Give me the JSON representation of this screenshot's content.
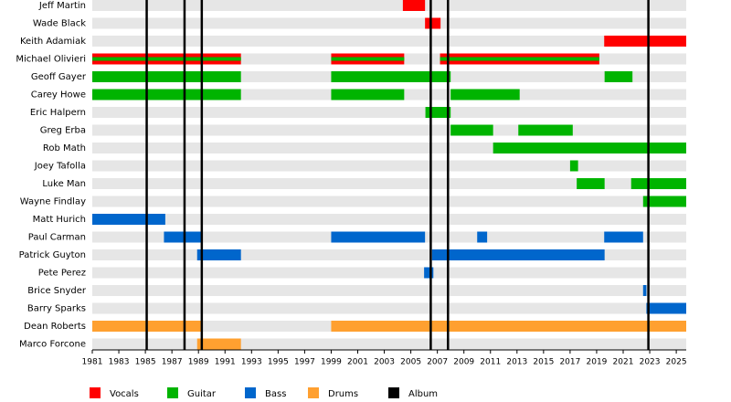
{
  "chart_data": {
    "type": "timeline",
    "rows": [
      {
        "name": "Jeff Martin",
        "periods": [
          [
            [
              2004.4,
              2006.07
            ]
          ],
          [],
          [],
          []
        ]
      },
      {
        "name": "Wade Black",
        "periods": [
          [
            [
              2006.07,
              2007.24
            ]
          ],
          [],
          [],
          []
        ]
      },
      {
        "name": "Keith Adamiak",
        "periods": [
          [
            [
              2019.57,
              2025.75
            ]
          ],
          [],
          [],
          []
        ]
      },
      {
        "name": "Michael Olivieri",
        "periods": [
          [
            [
              1981,
              1992.2
            ],
            [
              1999,
              2004.5
            ],
            [
              2007.2,
              2019.2
            ]
          ],
          [
            [
              1981,
              1992.2
            ],
            [
              1999,
              2004.5
            ],
            [
              2007.2,
              2019.2
            ]
          ],
          [],
          []
        ]
      },
      {
        "name": "Geoff Gayer",
        "periods": [
          [],
          [
            [
              1981,
              1992.2
            ],
            [
              1999,
              2008
            ],
            [
              2019.6,
              2021.7
            ]
          ],
          [],
          []
        ]
      },
      {
        "name": "Carey Howe",
        "periods": [
          [],
          [
            [
              1981,
              1992.2
            ],
            [
              1999,
              2004.5
            ],
            [
              2008,
              2013.2
            ]
          ],
          [],
          []
        ]
      },
      {
        "name": "Eric Halpern",
        "periods": [
          [],
          [
            [
              2006.1,
              2008
            ]
          ],
          [],
          []
        ]
      },
      {
        "name": "Greg Erba",
        "periods": [
          [],
          [
            [
              2008,
              2011.2
            ],
            [
              2013.1,
              2017.2
            ]
          ],
          [],
          []
        ]
      },
      {
        "name": "Rob Math",
        "periods": [
          [],
          [
            [
              2011.2,
              2025.75
            ]
          ],
          [],
          []
        ]
      },
      {
        "name": "Joey Tafolla",
        "periods": [
          [],
          [
            [
              2017,
              2017.6
            ]
          ],
          [],
          []
        ]
      },
      {
        "name": "Luke Man",
        "periods": [
          [],
          [
            [
              2017.5,
              2019.6
            ],
            [
              2021.6,
              2025.75
            ]
          ],
          [],
          []
        ]
      },
      {
        "name": "Wayne Findlay",
        "periods": [
          [],
          [
            [
              2022.5,
              2025.75
            ]
          ],
          [],
          []
        ]
      },
      {
        "name": "Matt Hurich",
        "periods": [
          [],
          [],
          [
            [
              1981,
              1986.5
            ]
          ],
          []
        ]
      },
      {
        "name": "Paul Carman",
        "periods": [
          [],
          [],
          [
            [
              1986.4,
              1989.2
            ],
            [
              1999,
              2006.07
            ],
            [
              2010,
              2010.75
            ],
            [
              2019.57,
              2022.5
            ]
          ],
          []
        ]
      },
      {
        "name": "Patrick Guyton",
        "periods": [
          [],
          [],
          [
            [
              1988.9,
              1992.2
            ],
            [
              2006.6,
              2019.6
            ]
          ],
          []
        ]
      },
      {
        "name": "Pete Perez",
        "periods": [
          [],
          [],
          [
            [
              2006,
              2006.7
            ]
          ],
          []
        ]
      },
      {
        "name": "Brice Snyder",
        "periods": [
          [],
          [],
          [
            [
              2022.5,
              2022.75
            ]
          ],
          []
        ]
      },
      {
        "name": "Barry Sparks",
        "periods": [
          [],
          [],
          [
            [
              2022.75,
              2025.75
            ]
          ],
          []
        ]
      },
      {
        "name": "Dean Roberts",
        "periods": [
          [],
          [],
          [],
          [
            [
              1981,
              1989.25
            ],
            [
              1999,
              2025.75
            ]
          ]
        ]
      },
      {
        "name": "Marco Forcone",
        "periods": [
          [],
          [],
          [],
          [
            [
              1988.9,
              1992.2
            ]
          ]
        ]
      }
    ],
    "series": [
      {
        "name": "Vocals",
        "color": "#ff0000"
      },
      {
        "name": "Guitar",
        "color": "#00b400"
      },
      {
        "name": "Bass",
        "color": "#0066cc"
      },
      {
        "name": "Drums",
        "color": "#ffa030"
      },
      {
        "name": "Album",
        "color": "#000000",
        "values": [
          1985.1,
          1987.95,
          1989.25,
          2006.5,
          2007.8,
          2022.9
        ]
      }
    ],
    "xlim": [
      1981,
      2025.75
    ],
    "xticks": [
      1981,
      1983,
      1985,
      1987,
      1989,
      1991,
      1993,
      1995,
      1997,
      1999,
      2001,
      2003,
      2005,
      2007,
      2009,
      2011,
      2013,
      2015,
      2017,
      2019,
      2021,
      2023,
      2025
    ]
  }
}
